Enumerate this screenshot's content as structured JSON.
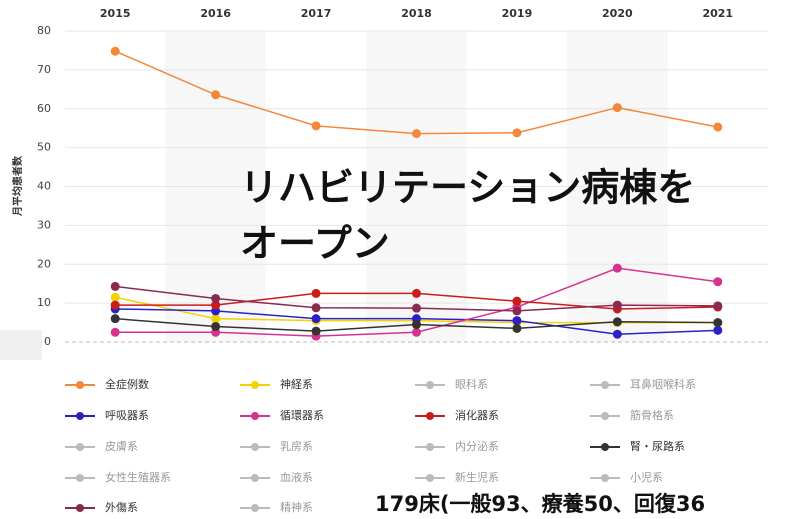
{
  "chart_data": {
    "type": "line",
    "y_label": "月平均患者数",
    "categories": [
      "2015",
      "2016",
      "2017",
      "2018",
      "2019",
      "2020",
      "2021"
    ],
    "ylim": [
      0,
      80
    ],
    "yticks": [
      0,
      10,
      20,
      30,
      40,
      50,
      60,
      70,
      80
    ],
    "grid": true,
    "series": [
      {
        "name": "全症例数",
        "color": "#f5873a",
        "values": [
          74.8,
          63.6,
          55.6,
          53.6,
          53.8,
          60.3,
          55.3
        ]
      },
      {
        "name": "神経系",
        "color": "#f2d200",
        "values": [
          11.5,
          6.0,
          5.5,
          5.5,
          5.0,
          5.0,
          5.0
        ]
      },
      {
        "name": "眼科系",
        "color": "#aaaaaa",
        "active": false
      },
      {
        "name": "耳鼻咽喉科系",
        "color": "#aaaaaa",
        "active": false
      },
      {
        "name": "呼吸器系",
        "color": "#2a22c8",
        "values": [
          8.5,
          8.0,
          6.0,
          6.0,
          5.5,
          2.0,
          3.0
        ]
      },
      {
        "name": "循環器系",
        "color": "#d6338f",
        "values": [
          2.5,
          2.5,
          1.5,
          2.5,
          9.0,
          19.0,
          15.5
        ]
      },
      {
        "name": "消化器系",
        "color": "#cc1b1b",
        "values": [
          9.5,
          9.5,
          12.5,
          12.5,
          10.5,
          8.5,
          9.0
        ]
      },
      {
        "name": "筋骨格系",
        "color": "#aaaaaa",
        "active": false
      },
      {
        "name": "皮膚系",
        "color": "#aaaaaa",
        "active": false
      },
      {
        "name": "乳房系",
        "color": "#aaaaaa",
        "active": false
      },
      {
        "name": "内分泌系",
        "color": "#aaaaaa",
        "active": false
      },
      {
        "name": "腎・尿路系",
        "color": "#333333",
        "values": [
          6.0,
          4.0,
          2.8,
          4.5,
          3.5,
          5.2,
          5.0
        ]
      },
      {
        "name": "女性生殖器系",
        "color": "#aaaaaa",
        "active": false
      },
      {
        "name": "血液系",
        "color": "#aaaaaa",
        "active": false
      },
      {
        "name": "新生児系",
        "color": "#aaaaaa",
        "active": false
      },
      {
        "name": "小児系",
        "color": "#aaaaaa",
        "active": false
      },
      {
        "name": "外傷系",
        "color": "#8a2a50",
        "values": [
          14.3,
          11.2,
          8.8,
          8.7,
          8.0,
          9.5,
          9.3
        ]
      },
      {
        "name": "精神系",
        "color": "#aaaaaa",
        "active": false
      }
    ]
  },
  "overlay": {
    "headline_1": "リハビリテーション病棟を",
    "headline_2": "オープン",
    "beds": "179床(一般93、療養50、回復36"
  }
}
